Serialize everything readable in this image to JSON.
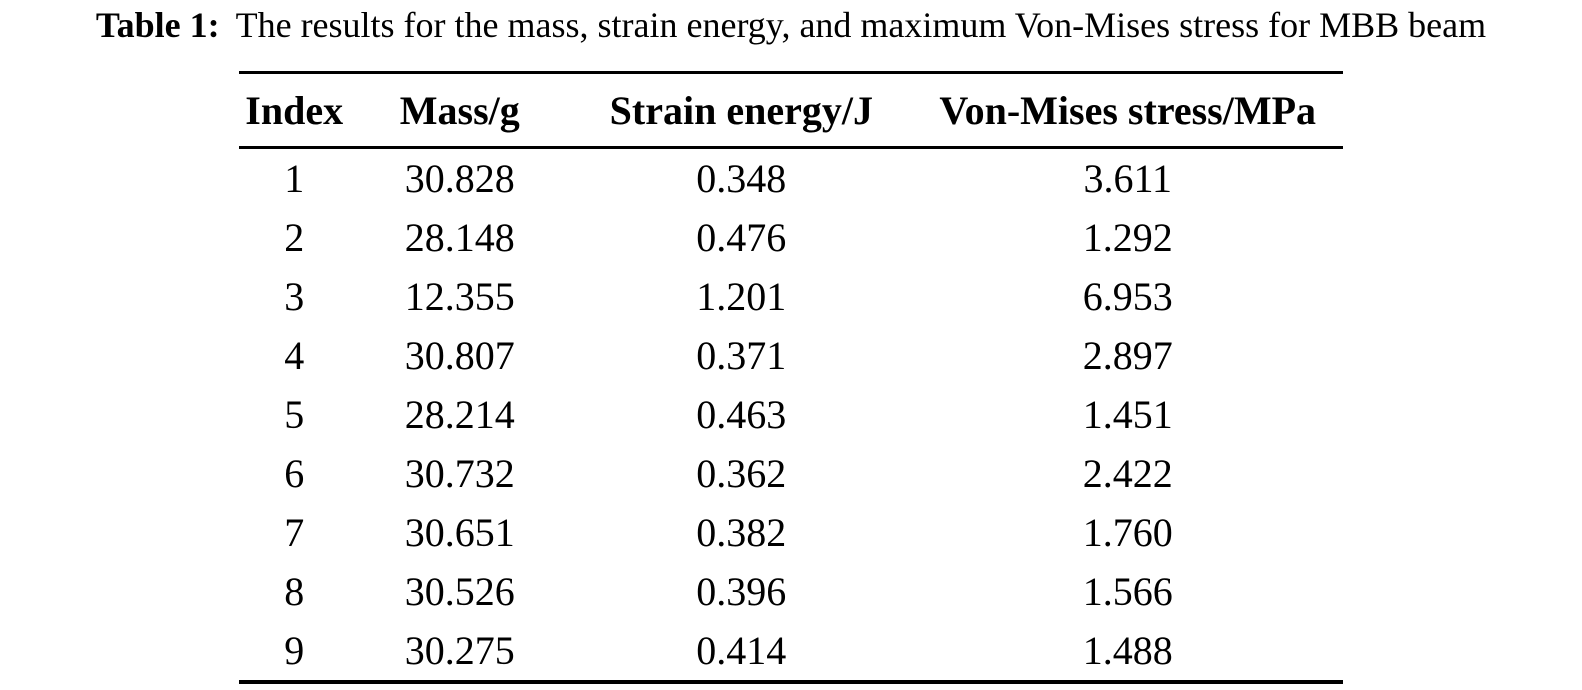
{
  "caption": {
    "label": "Table 1:",
    "text": "The results for the mass, strain energy, and maximum Von-Mises stress for MBB beam"
  },
  "table": {
    "columns": [
      "Index",
      "Mass/g",
      "Strain energy/J",
      "Von-Mises stress/MPa"
    ],
    "rows": [
      {
        "cells": [
          "1",
          "30.828",
          "0.348",
          "3.611"
        ]
      },
      {
        "cells": [
          "2",
          "28.148",
          "0.476",
          "1.292"
        ]
      },
      {
        "cells": [
          "3",
          "12.355",
          "1.201",
          "6.953"
        ]
      },
      {
        "cells": [
          "4",
          "30.807",
          "0.371",
          "2.897"
        ]
      },
      {
        "cells": [
          "5",
          "28.214",
          "0.463",
          "1.451"
        ]
      },
      {
        "cells": [
          "6",
          "30.732",
          "0.362",
          "2.422"
        ]
      },
      {
        "cells": [
          "7",
          "30.651",
          "0.382",
          "1.760"
        ]
      },
      {
        "cells": [
          "8",
          "30.526",
          "0.396",
          "1.566"
        ]
      },
      {
        "cells": [
          "9",
          "30.275",
          "0.414",
          "1.488"
        ]
      }
    ]
  },
  "chart_data": {
    "type": "table",
    "title": "Table 1: The results for the mass, strain energy, and maximum Von-Mises stress for MBB beam",
    "columns": [
      "Index",
      "Mass/g",
      "Strain energy/J",
      "Von-Mises stress/MPa"
    ],
    "rows": [
      [
        1,
        30.828,
        0.348,
        3.611
      ],
      [
        2,
        28.148,
        0.476,
        1.292
      ],
      [
        3,
        12.355,
        1.201,
        6.953
      ],
      [
        4,
        30.807,
        0.371,
        2.897
      ],
      [
        5,
        28.214,
        0.463,
        1.451
      ],
      [
        6,
        30.732,
        0.362,
        2.422
      ],
      [
        7,
        30.651,
        0.382,
        1.76
      ],
      [
        8,
        30.526,
        0.396,
        1.566
      ],
      [
        9,
        30.275,
        0.414,
        1.488
      ]
    ]
  }
}
